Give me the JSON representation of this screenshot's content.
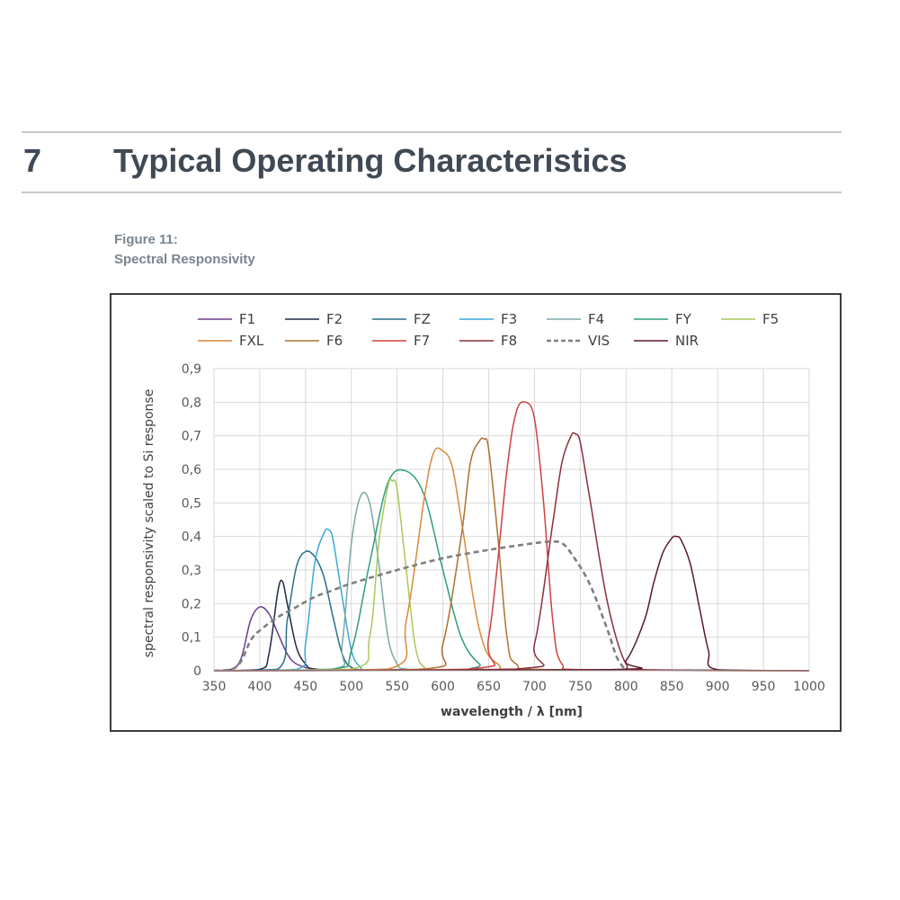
{
  "section": {
    "number": "7",
    "title": "Typical Operating Characteristics"
  },
  "figure": {
    "label": "Figure 11:",
    "caption": "Spectral Responsivity"
  },
  "chart_data": {
    "type": "line",
    "xlabel": "wavelength / λ [nm]",
    "ylabel": "spectral responsivity scaled to Si response",
    "xlim": [
      350,
      1000
    ],
    "ylim": [
      0,
      0.9
    ],
    "x_ticks": [
      "350",
      "400",
      "450",
      "500",
      "550",
      "600",
      "650",
      "700",
      "750",
      "800",
      "850",
      "900",
      "950",
      "1000"
    ],
    "y_ticks": [
      "0",
      "0,1",
      "0,2",
      "0,3",
      "0,4",
      "0,5",
      "0,6",
      "0,7",
      "0,8",
      "0,9"
    ],
    "grid": true,
    "legend_position": "top",
    "series": [
      {
        "name": "F1",
        "color": "#6a3d8f",
        "dash": false,
        "x": [
          350,
          370,
          380,
          390,
          400,
          410,
          420,
          430,
          440,
          460,
          500,
          600,
          800,
          1000
        ],
        "y": [
          0,
          0.005,
          0.04,
          0.15,
          0.19,
          0.17,
          0.11,
          0.05,
          0.02,
          0.005,
          0.003,
          0.003,
          0.003,
          0
        ]
      },
      {
        "name": "F2",
        "color": "#1f2a44",
        "dash": false,
        "x": [
          350,
          400,
          410,
          420,
          425,
          430,
          440,
          450,
          460,
          500,
          700,
          1000
        ],
        "y": [
          0,
          0.004,
          0.05,
          0.24,
          0.265,
          0.2,
          0.07,
          0.02,
          0.005,
          0.003,
          0.003,
          0
        ]
      },
      {
        "name": "FZ",
        "color": "#2b6f8a",
        "dash": false,
        "x": [
          350,
          420,
          430,
          440,
          450,
          460,
          470,
          480,
          490,
          500,
          520,
          600,
          1000
        ],
        "y": [
          0,
          0.005,
          0.15,
          0.31,
          0.355,
          0.34,
          0.28,
          0.16,
          0.05,
          0.01,
          0.003,
          0.003,
          0
        ]
      },
      {
        "name": "F3",
        "color": "#3aa8d8",
        "dash": false,
        "x": [
          350,
          440,
          450,
          460,
          470,
          475,
          480,
          490,
          500,
          510,
          520,
          600,
          1000
        ],
        "y": [
          0,
          0.004,
          0.08,
          0.32,
          0.41,
          0.42,
          0.39,
          0.22,
          0.06,
          0.01,
          0.003,
          0.003,
          0
        ]
      },
      {
        "name": "F4",
        "color": "#7aa9a6",
        "dash": false,
        "x": [
          350,
          480,
          490,
          500,
          510,
          520,
          530,
          540,
          550,
          560,
          600,
          1000
        ],
        "y": [
          0,
          0.005,
          0.08,
          0.38,
          0.52,
          0.5,
          0.32,
          0.1,
          0.02,
          0.005,
          0.003,
          0
        ]
      },
      {
        "name": "FY",
        "color": "#2e9e7a",
        "dash": false,
        "x": [
          350,
          480,
          500,
          520,
          540,
          560,
          580,
          600,
          620,
          640,
          660,
          1000
        ],
        "y": [
          0,
          0.005,
          0.06,
          0.32,
          0.56,
          0.595,
          0.52,
          0.3,
          0.1,
          0.02,
          0.003,
          0
        ]
      },
      {
        "name": "F5",
        "color": "#a8c95a",
        "dash": false,
        "x": [
          350,
          500,
          520,
          530,
          540,
          545,
          550,
          560,
          570,
          580,
          600,
          1000
        ],
        "y": [
          0,
          0.005,
          0.1,
          0.38,
          0.55,
          0.565,
          0.54,
          0.3,
          0.07,
          0.01,
          0.003,
          0
        ]
      },
      {
        "name": "FXL",
        "color": "#d8893a",
        "dash": false,
        "x": [
          350,
          540,
          560,
          580,
          590,
          600,
          610,
          620,
          640,
          660,
          700,
          1000
        ],
        "y": [
          0,
          0.005,
          0.15,
          0.52,
          0.65,
          0.655,
          0.61,
          0.45,
          0.12,
          0.02,
          0.003,
          0
        ]
      },
      {
        "name": "F6",
        "color": "#b07030",
        "dash": false,
        "x": [
          350,
          580,
          600,
          620,
          630,
          640,
          645,
          650,
          660,
          670,
          680,
          720,
          1000
        ],
        "y": [
          0,
          0.005,
          0.08,
          0.4,
          0.62,
          0.685,
          0.69,
          0.66,
          0.4,
          0.1,
          0.02,
          0.003,
          0
        ]
      },
      {
        "name": "F7",
        "color": "#d04040",
        "dash": false,
        "x": [
          350,
          630,
          650,
          670,
          680,
          690,
          700,
          710,
          720,
          730,
          760,
          1000
        ],
        "y": [
          0,
          0.005,
          0.1,
          0.6,
          0.77,
          0.8,
          0.75,
          0.5,
          0.15,
          0.02,
          0.003,
          0
        ]
      },
      {
        "name": "F8",
        "color": "#8c2f3a",
        "dash": false,
        "x": [
          350,
          680,
          700,
          720,
          730,
          740,
          745,
          750,
          760,
          780,
          800,
          820,
          1000
        ],
        "y": [
          0,
          0.005,
          0.08,
          0.44,
          0.62,
          0.7,
          0.705,
          0.68,
          0.52,
          0.2,
          0.02,
          0.003,
          0
        ]
      },
      {
        "name": "VIS",
        "color": "#7f7f7f",
        "dash": true,
        "x": [
          350,
          370,
          380,
          390,
          400,
          420,
          440,
          460,
          480,
          500,
          550,
          600,
          650,
          700,
          720,
          730,
          740,
          760,
          780,
          790,
          800
        ],
        "y": [
          0,
          0.005,
          0.03,
          0.09,
          0.12,
          0.16,
          0.19,
          0.22,
          0.24,
          0.26,
          0.3,
          0.335,
          0.36,
          0.38,
          0.385,
          0.38,
          0.35,
          0.26,
          0.12,
          0.04,
          0
        ]
      },
      {
        "name": "NIR",
        "color": "#5a1a2a",
        "dash": false,
        "x": [
          350,
          780,
          800,
          820,
          830,
          840,
          850,
          855,
          860,
          870,
          880,
          890,
          900,
          1000
        ],
        "y": [
          0,
          0.003,
          0.03,
          0.15,
          0.26,
          0.35,
          0.395,
          0.4,
          0.39,
          0.32,
          0.19,
          0.06,
          0.003,
          0
        ]
      }
    ]
  }
}
